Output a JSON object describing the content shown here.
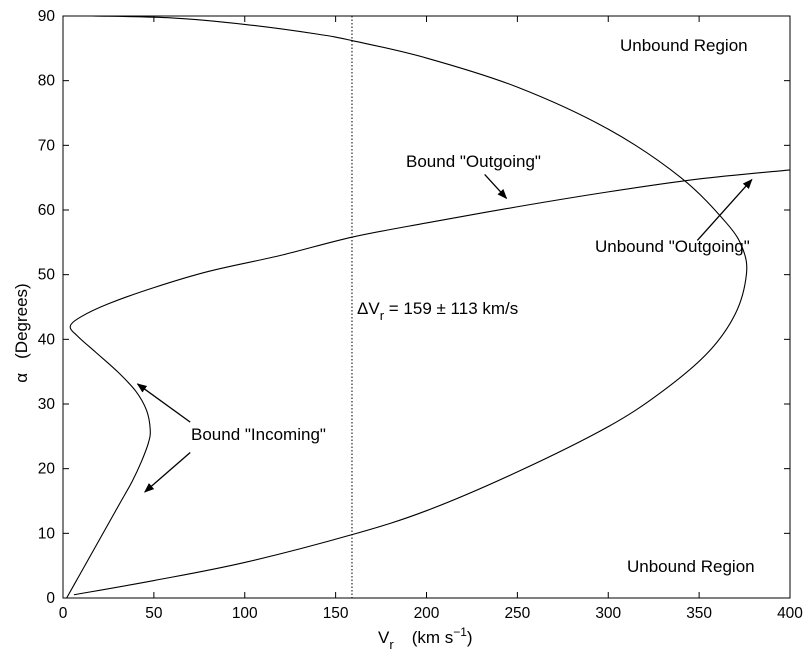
{
  "chart_data": {
    "type": "line",
    "xlabel": {
      "main": "V",
      "sub": "r",
      "unit_prefix": "(km s",
      "unit_sup": "−1",
      "unit_suffix": ")"
    },
    "ylabel": {
      "symbol": "α",
      "text": "(Degrees)"
    },
    "xlim": [
      0,
      400
    ],
    "ylim": [
      0,
      90
    ],
    "xticks": [
      0,
      50,
      100,
      150,
      200,
      250,
      300,
      350,
      400
    ],
    "yticks": [
      0,
      10,
      20,
      30,
      40,
      50,
      60,
      70,
      80,
      90
    ],
    "grid": false,
    "vertical_line": {
      "x": 159,
      "style": "dotted"
    },
    "series": [
      {
        "points": [
          [
            2,
            0
          ],
          [
            8,
            3
          ],
          [
            16,
            7
          ],
          [
            24,
            11
          ],
          [
            32,
            15
          ],
          [
            38,
            18
          ],
          [
            43,
            21
          ],
          [
            47,
            24
          ],
          [
            48,
            26
          ],
          [
            46,
            29
          ],
          [
            40,
            32
          ],
          [
            30,
            35
          ],
          [
            18,
            38
          ],
          [
            8,
            40.5
          ],
          [
            4,
            42
          ],
          [
            10,
            43.5
          ],
          [
            25,
            45.5
          ],
          [
            50,
            48
          ],
          [
            80,
            50.5
          ],
          [
            120,
            53
          ],
          [
            159,
            55.8
          ],
          [
            200,
            58
          ],
          [
            250,
            60.5
          ],
          [
            300,
            62.8
          ],
          [
            350,
            64.8
          ],
          [
            400,
            66.2
          ]
        ]
      },
      {
        "points": [
          [
            16,
            90
          ],
          [
            60,
            89.7
          ],
          [
            100,
            88.7
          ],
          [
            140,
            87.2
          ],
          [
            159,
            86.2
          ],
          [
            200,
            83.5
          ],
          [
            250,
            79
          ],
          [
            300,
            72.5
          ],
          [
            340,
            65
          ],
          [
            365,
            58
          ],
          [
            374,
            54
          ],
          [
            376,
            50
          ],
          [
            370,
            44
          ],
          [
            355,
            38
          ],
          [
            330,
            32
          ],
          [
            300,
            26.5
          ],
          [
            250,
            19.5
          ],
          [
            200,
            13.5
          ],
          [
            159,
            9.8
          ],
          [
            100,
            5.5
          ],
          [
            50,
            2.7
          ],
          [
            6,
            0.5
          ]
        ]
      }
    ],
    "annotations": [
      {
        "id": "unbound-top",
        "text": "Unbound Region",
        "pos": [
          312,
          84
        ]
      },
      {
        "id": "unbound-bottom",
        "text": "Unbound Region",
        "pos": [
          315,
          4
        ]
      },
      {
        "id": "bound-outgoing",
        "text": "Bound \"Outgoing\"",
        "pos": [
          188,
          68.3
        ],
        "arrow_from": [
          232,
          65.5
        ],
        "arrow_to": [
          244,
          61.8
        ]
      },
      {
        "id": "unbound-outgoing",
        "text": "Unbound \"Outgoing\"",
        "pos": [
          293,
          51.8
        ],
        "arrow_from": [
          349,
          55.3
        ],
        "arrow_to": [
          379,
          64.7
        ]
      },
      {
        "id": "bound-incoming",
        "text": "Bound \"Incoming\"",
        "pos": [
          70,
          24.2
        ],
        "arrow_from": [
          70,
          27.2
        ],
        "arrow_to": [
          41,
          33.1
        ],
        "arrow2_from": [
          70,
          22.5
        ],
        "arrow2_to": [
          45,
          16.4
        ]
      }
    ],
    "delta": {
      "symbol": "Δ",
      "main": "V",
      "sub": "r",
      "text": " = 159 ± 113  km/s"
    }
  }
}
